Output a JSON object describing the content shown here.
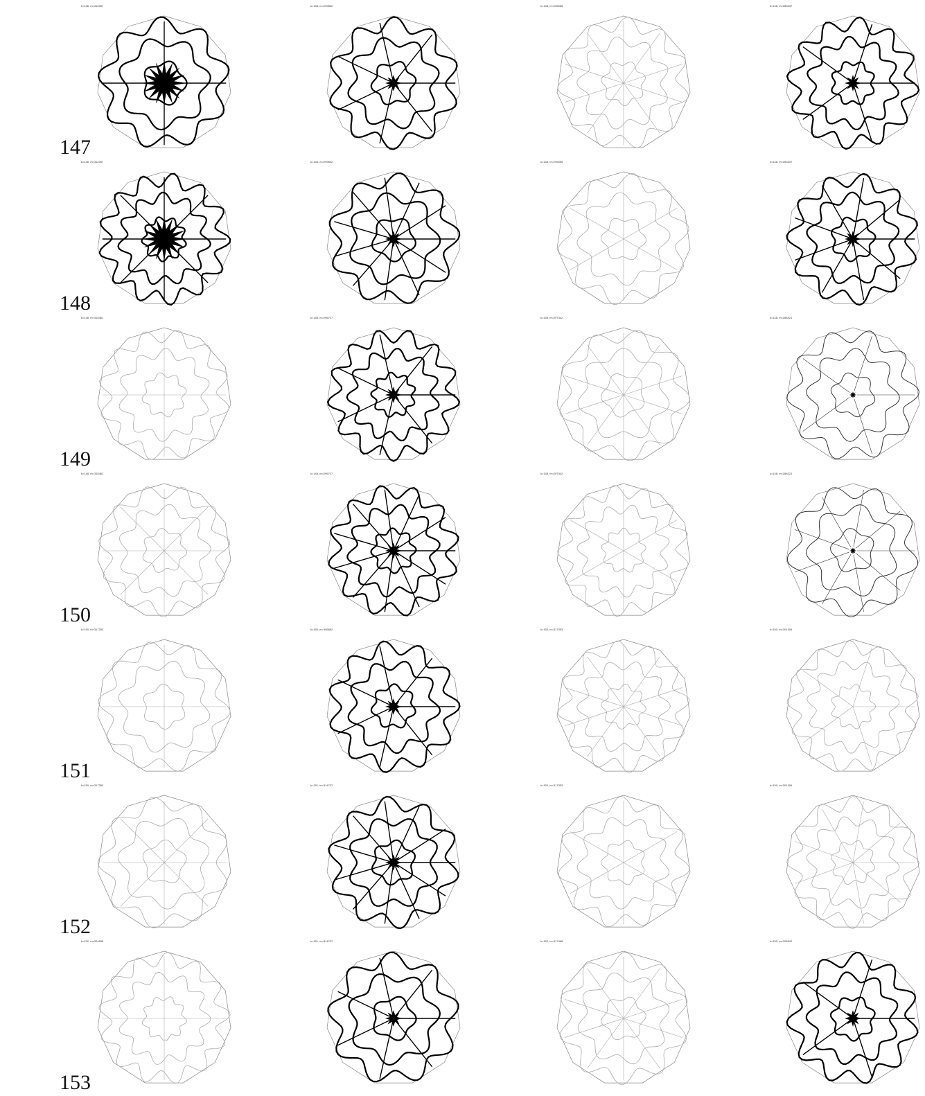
{
  "rows": [
    {
      "label": "147",
      "cells": [
        {
          "caption": "k=148, m=312057"
        },
        {
          "caption": "k=148, m=299802"
        },
        {
          "caption": "k=148, m=296055"
        },
        {
          "caption": "k=148, m=283337"
        }
      ]
    },
    {
      "label": "148",
      "cells": [
        {
          "caption": "k=148, m=312057"
        },
        {
          "caption": "k=148, m=299802"
        },
        {
          "caption": "k=148, m=296055"
        },
        {
          "caption": "k=148, m=283337"
        }
      ]
    },
    {
      "label": "149",
      "cells": [
        {
          "caption": "k=148, m=315461"
        },
        {
          "caption": "k=148, m=296727"
        },
        {
          "caption": "k=148, m=297342"
        },
        {
          "caption": "k=148, m=288321"
        }
      ]
    },
    {
      "label": "150",
      "cells": [
        {
          "caption": "k=148, m=315461"
        },
        {
          "caption": "k=148, m=296727"
        },
        {
          "caption": "k=148, m=297342"
        },
        {
          "caption": "k=148, m=288321"
        }
      ]
    },
    {
      "label": "151",
      "cells": [
        {
          "caption": "k=150, m=317252"
        },
        {
          "caption": "k=150, m=306862"
        },
        {
          "caption": "k=150, m=317353"
        },
        {
          "caption": "k=150, m=301306"
        }
      ]
    },
    {
      "label": "152",
      "cells": [
        {
          "caption": "k=150, m=317353"
        },
        {
          "caption": "k=151, m=314737"
        },
        {
          "caption": "k=150, m=317353"
        },
        {
          "caption": "k=150, m=301306"
        }
      ]
    },
    {
      "label": "153",
      "cells": [
        {
          "caption": "k=152, m=324598"
        },
        {
          "caption": "k=151, m=314737"
        },
        {
          "caption": "k=152, m=317468"
        },
        {
          "caption": "k=152, m=306542"
        }
      ]
    }
  ]
}
